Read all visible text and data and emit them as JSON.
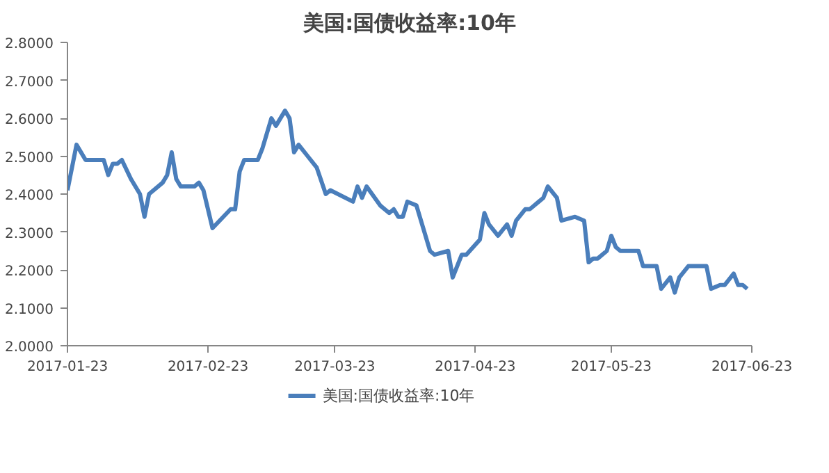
{
  "chart_data": {
    "type": "line",
    "title": "美国:国债收益率:10年",
    "x": [
      "2017-01-23",
      "2017-01-25",
      "2017-01-27",
      "2017-01-31",
      "2017-02-01",
      "2017-02-02",
      "2017-02-03",
      "2017-02-04",
      "2017-02-06",
      "2017-02-08",
      "2017-02-09",
      "2017-02-10",
      "2017-02-13",
      "2017-02-14",
      "2017-02-15",
      "2017-02-16",
      "2017-02-17",
      "2017-02-20",
      "2017-02-21",
      "2017-02-22",
      "2017-02-24",
      "2017-02-28",
      "2017-03-01",
      "2017-03-02",
      "2017-03-03",
      "2017-03-06",
      "2017-03-07",
      "2017-03-09",
      "2017-03-10",
      "2017-03-12",
      "2017-03-13",
      "2017-03-14",
      "2017-03-15",
      "2017-03-17",
      "2017-03-19",
      "2017-03-21",
      "2017-03-22",
      "2017-03-27",
      "2017-03-28",
      "2017-03-29",
      "2017-03-30",
      "2017-04-02",
      "2017-04-04",
      "2017-04-05",
      "2017-04-06",
      "2017-04-07",
      "2017-04-08",
      "2017-04-10",
      "2017-04-12",
      "2017-04-13",
      "2017-04-14",
      "2017-04-17",
      "2017-04-18",
      "2017-04-20",
      "2017-04-21",
      "2017-04-24",
      "2017-04-25",
      "2017-04-26",
      "2017-04-28",
      "2017-04-30",
      "2017-05-01",
      "2017-05-02",
      "2017-05-04",
      "2017-05-05",
      "2017-05-07",
      "2017-05-08",
      "2017-05-09",
      "2017-05-11",
      "2017-05-12",
      "2017-05-15",
      "2017-05-17",
      "2017-05-18",
      "2017-05-19",
      "2017-05-20",
      "2017-05-22",
      "2017-05-23",
      "2017-05-24",
      "2017-05-25",
      "2017-05-29",
      "2017-05-30",
      "2017-06-02",
      "2017-06-03",
      "2017-06-05",
      "2017-06-06",
      "2017-06-07",
      "2017-06-09",
      "2017-06-13",
      "2017-06-14",
      "2017-06-16",
      "2017-06-17",
      "2017-06-19",
      "2017-06-20",
      "2017-06-21",
      "2017-06-22"
    ],
    "series": [
      {
        "name": "美国:国债收益率:10年",
        "color": "#4a7ebb",
        "values": [
          2.41,
          2.53,
          2.49,
          2.49,
          2.45,
          2.48,
          2.48,
          2.49,
          2.44,
          2.4,
          2.34,
          2.4,
          2.43,
          2.45,
          2.51,
          2.44,
          2.42,
          2.42,
          2.43,
          2.41,
          2.31,
          2.36,
          2.36,
          2.46,
          2.49,
          2.49,
          2.52,
          2.6,
          2.58,
          2.62,
          2.6,
          2.51,
          2.53,
          2.5,
          2.47,
          2.4,
          2.41,
          2.38,
          2.42,
          2.39,
          2.42,
          2.37,
          2.35,
          2.36,
          2.34,
          2.34,
          2.38,
          2.37,
          2.29,
          2.25,
          2.24,
          2.25,
          2.18,
          2.24,
          2.24,
          2.28,
          2.35,
          2.32,
          2.29,
          2.32,
          2.29,
          2.33,
          2.36,
          2.36,
          2.38,
          2.39,
          2.42,
          2.39,
          2.33,
          2.34,
          2.33,
          2.22,
          2.23,
          2.23,
          2.25,
          2.29,
          2.26,
          2.25,
          2.25,
          2.21,
          2.21,
          2.15,
          2.18,
          2.14,
          2.18,
          2.21,
          2.21,
          2.15,
          2.16,
          2.16,
          2.19,
          2.16,
          2.16,
          2.15
        ]
      }
    ],
    "xlim": [
      "2017-01-23",
      "2017-06-23"
    ],
    "xticks": [
      "2017-01-23",
      "2017-02-23",
      "2017-03-23",
      "2017-04-23",
      "2017-05-23",
      "2017-06-23"
    ],
    "ylim": [
      2.0,
      2.8
    ],
    "yticks": [
      {
        "value": 2.0,
        "label": "2.0000"
      },
      {
        "value": 2.1,
        "label": "2.1000"
      },
      {
        "value": 2.2,
        "label": "2.2000"
      },
      {
        "value": 2.3,
        "label": "2.3000"
      },
      {
        "value": 2.4,
        "label": "2.4000"
      },
      {
        "value": 2.5,
        "label": "2.5000"
      },
      {
        "value": 2.6,
        "label": "2.6000"
      },
      {
        "value": 2.7,
        "label": "2.7000"
      },
      {
        "value": 2.8,
        "label": "2.8000"
      }
    ],
    "grid": false,
    "legend": "bottom",
    "line_style": "solid"
  }
}
